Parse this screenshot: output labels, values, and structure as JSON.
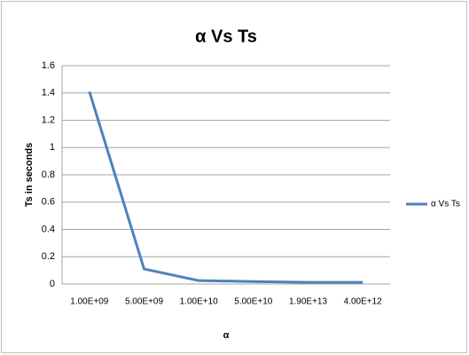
{
  "chart_data": {
    "type": "line",
    "title": "α Vs Ts",
    "x_label": "α",
    "y_label": "Ts in seconds",
    "categories": [
      "1.00E+09",
      "5.00E+09",
      "1.00E+10",
      "5.00E+10",
      "1.90E+13",
      "4.00E+12"
    ],
    "series": [
      {
        "name": "α Vs Ts",
        "color": "#4f81bd",
        "values": [
          1.41,
          0.11,
          0.025,
          0.018,
          0.012,
          0.012
        ]
      }
    ],
    "ylim": [
      0,
      1.6
    ],
    "yticks": [
      0,
      0.2,
      0.4,
      0.6,
      0.8,
      1,
      1.2,
      1.4,
      1.6
    ],
    "grid": true,
    "legend": "right"
  }
}
